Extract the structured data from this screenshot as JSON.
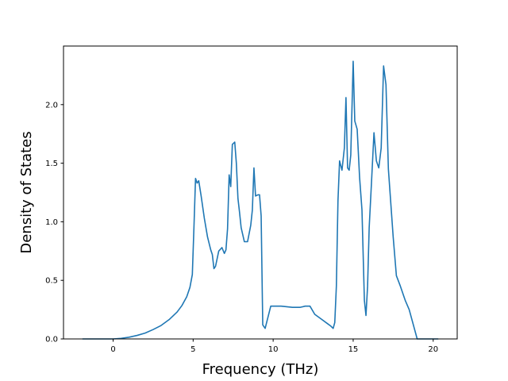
{
  "chart_data": {
    "type": "line",
    "xlabel": "Frequency (THz)",
    "ylabel": "Density of States",
    "xlim": [
      -3.1,
      21.5
    ],
    "ylim": [
      0,
      2.5
    ],
    "xticks": [
      0,
      5,
      10,
      15,
      20
    ],
    "xtick_labels": [
      "0",
      "5",
      "10",
      "15",
      "20"
    ],
    "yticks": [
      0,
      0.5,
      1.0,
      1.5,
      2.0
    ],
    "ytick_labels": [
      "0.0",
      "0.5",
      "1.0",
      "1.5",
      "2.0"
    ],
    "grid": false,
    "legend": "none",
    "series": [
      {
        "color": "#1f77b4",
        "x": [
          -1.9,
          -1.0,
          0.0,
          0.5,
          1.0,
          1.5,
          2.0,
          2.5,
          3.0,
          3.5,
          4.0,
          4.3,
          4.6,
          4.8,
          4.95,
          5.05,
          5.15,
          5.25,
          5.35,
          5.5,
          5.7,
          5.9,
          6.1,
          6.2,
          6.3,
          6.4,
          6.6,
          6.8,
          6.95,
          7.05,
          7.15,
          7.25,
          7.35,
          7.45,
          7.6,
          7.7,
          7.8,
          7.9,
          8.0,
          8.2,
          8.4,
          8.6,
          8.7,
          8.8,
          8.9,
          9.05,
          9.15,
          9.25,
          9.35,
          9.5,
          9.85,
          10.5,
          11.2,
          11.7,
          12.0,
          12.3,
          12.6,
          13.0,
          13.4,
          13.6,
          13.75,
          13.85,
          13.95,
          14.05,
          14.15,
          14.3,
          14.45,
          14.55,
          14.65,
          14.75,
          14.85,
          15.0,
          15.1,
          15.25,
          15.4,
          15.55,
          15.7,
          15.8,
          15.9,
          16.0,
          16.15,
          16.3,
          16.45,
          16.6,
          16.75,
          16.9,
          17.05,
          17.2,
          17.35,
          17.5,
          17.7,
          17.95,
          18.25,
          18.5,
          19.0,
          19.5,
          20.3
        ],
        "y": [
          0,
          0,
          0,
          0.005,
          0.015,
          0.03,
          0.05,
          0.08,
          0.115,
          0.165,
          0.23,
          0.285,
          0.36,
          0.44,
          0.55,
          0.95,
          1.37,
          1.33,
          1.35,
          1.22,
          1.03,
          0.87,
          0.76,
          0.72,
          0.6,
          0.62,
          0.75,
          0.78,
          0.73,
          0.76,
          0.94,
          1.4,
          1.3,
          1.66,
          1.68,
          1.5,
          1.2,
          1.08,
          0.95,
          0.83,
          0.83,
          0.97,
          1.1,
          1.46,
          1.22,
          1.23,
          1.23,
          1.05,
          0.12,
          0.09,
          0.28,
          0.28,
          0.27,
          0.27,
          0.28,
          0.28,
          0.21,
          0.17,
          0.13,
          0.11,
          0.09,
          0.14,
          0.45,
          1.18,
          1.52,
          1.44,
          1.63,
          2.06,
          1.46,
          1.44,
          1.57,
          2.37,
          1.86,
          1.79,
          1.38,
          1.1,
          0.33,
          0.2,
          0.45,
          0.95,
          1.35,
          1.76,
          1.52,
          1.46,
          1.63,
          2.33,
          2.17,
          1.45,
          1.16,
          0.87,
          0.54,
          0.45,
          0.33,
          0.25,
          0.0,
          0.0,
          0.0
        ]
      }
    ]
  }
}
